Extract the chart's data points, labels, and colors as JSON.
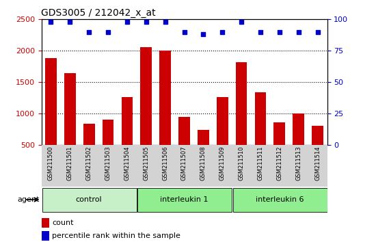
{
  "title": "GDS3005 / 212042_x_at",
  "samples": [
    "GSM211500",
    "GSM211501",
    "GSM211502",
    "GSM211503",
    "GSM211504",
    "GSM211505",
    "GSM211506",
    "GSM211507",
    "GSM211508",
    "GSM211509",
    "GSM211510",
    "GSM211511",
    "GSM211512",
    "GSM211513",
    "GSM211514"
  ],
  "counts": [
    1880,
    1650,
    840,
    910,
    1260,
    2060,
    2000,
    950,
    740,
    1260,
    1820,
    1340,
    860,
    1000,
    810
  ],
  "percentiles": [
    98,
    98,
    90,
    90,
    98,
    98,
    98,
    90,
    88,
    90,
    98,
    90,
    90,
    90,
    90
  ],
  "groups": [
    {
      "label": "control",
      "start": 0,
      "end": 5,
      "color": "#c8f0c8"
    },
    {
      "label": "interleukin 1",
      "start": 5,
      "end": 10,
      "color": "#90ee90"
    },
    {
      "label": "interleukin 6",
      "start": 10,
      "end": 15,
      "color": "#90ee90"
    }
  ],
  "bar_color": "#cc0000",
  "dot_color": "#0000cc",
  "ylim_left": [
    500,
    2500
  ],
  "ylim_right": [
    0,
    100
  ],
  "yticks_left": [
    500,
    1000,
    1500,
    2000,
    2500
  ],
  "yticks_right": [
    0,
    25,
    50,
    75,
    100
  ],
  "grid_values": [
    1000,
    1500,
    2000
  ],
  "bar_width": 0.6,
  "background_color": "#d3d3d3",
  "agent_label": "agent",
  "legend_count_label": "count",
  "legend_percentile_label": "percentile rank within the sample"
}
